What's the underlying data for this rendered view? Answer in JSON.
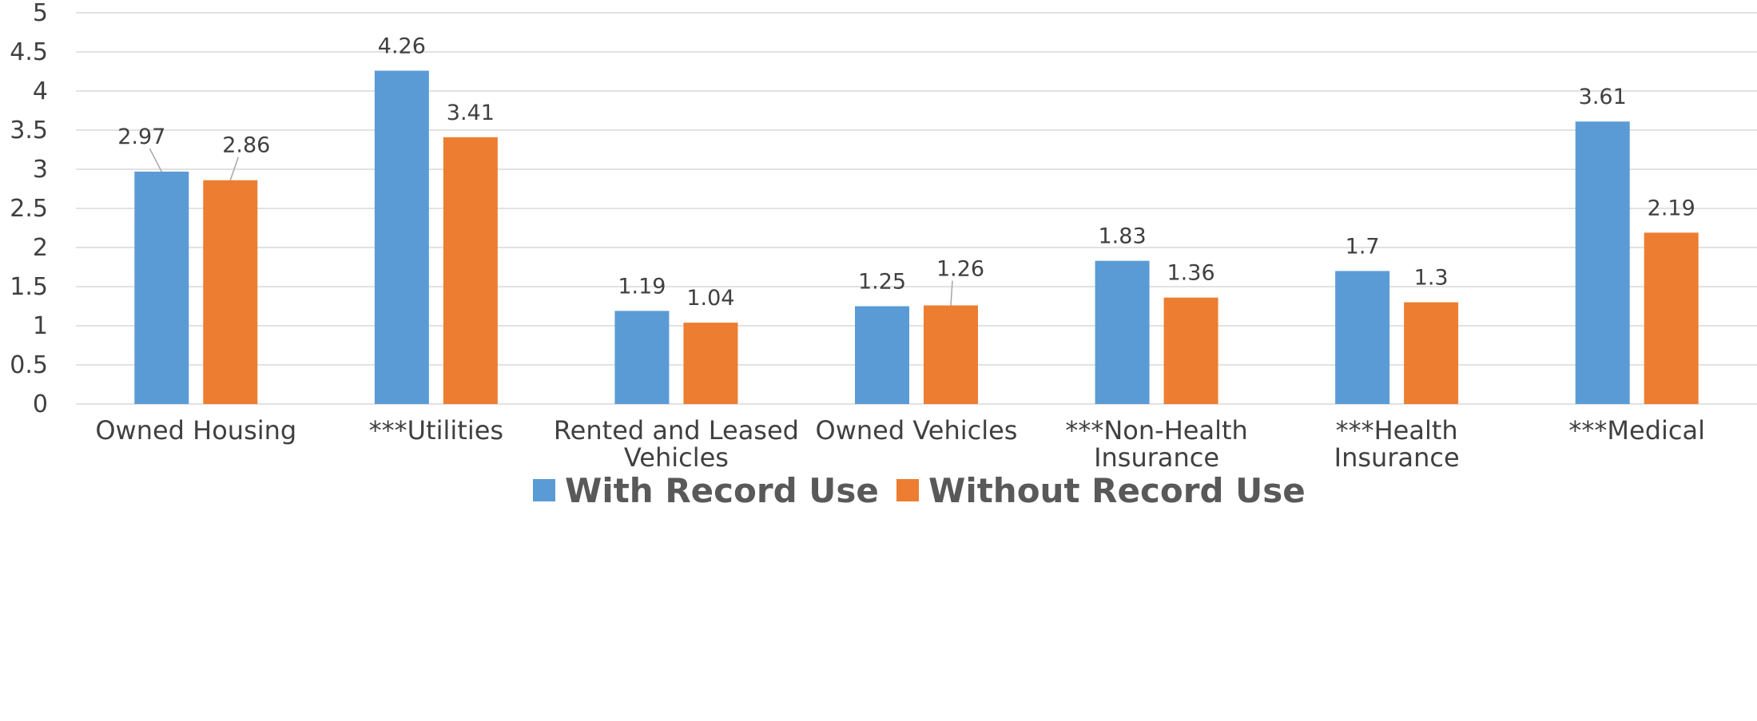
{
  "chart_data": {
    "type": "bar",
    "title": "",
    "xlabel": "",
    "ylabel": "",
    "ylim": [
      0,
      5
    ],
    "yticks": [
      0,
      0.5,
      1,
      1.5,
      2,
      2.5,
      3,
      3.5,
      4,
      4.5,
      5
    ],
    "ytick_labels": [
      "0",
      "0.5",
      "1",
      "1.5",
      "2",
      "2.5",
      "3",
      "3.5",
      "4",
      "4.5",
      "5"
    ],
    "grid": true,
    "legend_position": "bottom",
    "categories": [
      "Owned Housing",
      "***Utilities",
      "Rented and Leased Vehicles",
      "Owned Vehicles",
      "***Non-Health Insurance",
      "***Health Insurance",
      "***Medical"
    ],
    "category_lines": [
      [
        "Owned Housing"
      ],
      [
        "***Utilities"
      ],
      [
        "Rented and Leased",
        "Vehicles"
      ],
      [
        "Owned Vehicles"
      ],
      [
        "***Non-Health",
        "Insurance"
      ],
      [
        "***Health",
        "Insurance"
      ],
      [
        "***Medical"
      ]
    ],
    "series": [
      {
        "name": "With Record Use",
        "color": "#5B9BD5",
        "values": [
          2.97,
          4.26,
          1.19,
          1.25,
          1.83,
          1.7,
          3.61
        ],
        "labels": [
          "2.97",
          "4.26",
          "1.19",
          "1.25",
          "1.83",
          "1.7",
          "3.61"
        ]
      },
      {
        "name": "Without Record Use",
        "color": "#ED7D31",
        "values": [
          2.86,
          3.41,
          1.04,
          1.26,
          1.36,
          1.3,
          2.19
        ],
        "labels": [
          "2.86",
          "3.41",
          "1.04",
          "1.26",
          "1.36",
          "1.3",
          "2.19"
        ]
      }
    ],
    "colors": {
      "grid": "#D9D9D9",
      "axis_text": "#404040",
      "legend_text": "#595959"
    }
  }
}
